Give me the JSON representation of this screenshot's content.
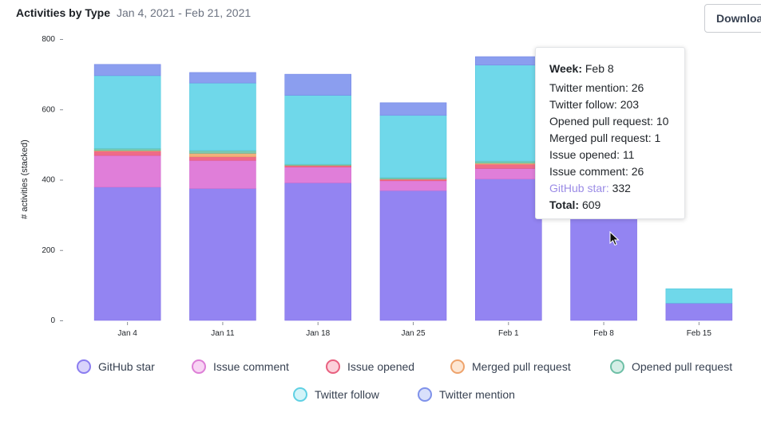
{
  "header": {
    "title": "Activities by Type",
    "date_range": "Jan 4, 2021 - Feb 21, 2021",
    "download_label": "Download"
  },
  "chart_data": {
    "type": "bar",
    "stacked": true,
    "ylabel": "# activities (stacked)",
    "xlabel": "",
    "ylim": [
      0,
      800
    ],
    "yticks": [
      0,
      200,
      400,
      600,
      800
    ],
    "categories": [
      "Jan 4",
      "Jan 11",
      "Jan 18",
      "Jan 25",
      "Feb 1",
      "Feb 8",
      "Feb 15"
    ],
    "series": [
      {
        "name": "GitHub star",
        "color": "#9384f2",
        "border": "#8271e6",
        "values": [
          379,
          375,
          391,
          369,
          402,
          332,
          49
        ]
      },
      {
        "name": "Issue comment",
        "color": "#e07ed9",
        "border": "#d46ecd",
        "values": [
          90,
          80,
          45,
          28,
          30,
          26,
          0
        ]
      },
      {
        "name": "Issue opened",
        "color": "#ef6b88",
        "border": "#e2577a",
        "values": [
          12,
          10,
          4,
          4,
          12,
          11,
          0
        ]
      },
      {
        "name": "Merged pull request",
        "color": "#f2b07a",
        "border": "#e89b60",
        "values": [
          2,
          10,
          1,
          1,
          3,
          1,
          0
        ]
      },
      {
        "name": "Opened pull request",
        "color": "#7cc8b0",
        "border": "#5fb89c",
        "values": [
          6,
          8,
          3,
          4,
          6,
          10,
          0
        ]
      },
      {
        "name": "Twitter follow",
        "color": "#6fd8ea",
        "border": "#52c9de",
        "values": [
          207,
          192,
          196,
          177,
          273,
          203,
          41
        ]
      },
      {
        "name": "Twitter mention",
        "color": "#8b9eef",
        "border": "#7488e6",
        "values": [
          32,
          30,
          60,
          36,
          24,
          26,
          0
        ]
      }
    ]
  },
  "tooltip": {
    "week_label": "Week:",
    "week_value": "Feb 8",
    "rows": [
      {
        "label": "Twitter mention",
        "value": "26"
      },
      {
        "label": "Twitter follow",
        "value": "203"
      },
      {
        "label": "Opened pull request",
        "value": "10"
      },
      {
        "label": "Merged pull request",
        "value": "1"
      },
      {
        "label": "Issue opened",
        "value": "11"
      },
      {
        "label": "Issue comment",
        "value": "26"
      },
      {
        "label": "GitHub star",
        "value": "332"
      }
    ],
    "total_label": "Total:",
    "total_value": "609"
  },
  "legend": [
    {
      "label": "GitHub star",
      "fill": "#d9d3fb",
      "border": "#8b7df0"
    },
    {
      "label": "Issue comment",
      "fill": "#f8d4f4",
      "border": "#dd7fd6"
    },
    {
      "label": "Issue opened",
      "fill": "#fcd0da",
      "border": "#e8607f"
    },
    {
      "label": "Merged pull request",
      "fill": "#fde6d3",
      "border": "#eea36c"
    },
    {
      "label": "Opened pull request",
      "fill": "#d5eee6",
      "border": "#6ebfa6"
    },
    {
      "label": "Twitter follow",
      "fill": "#d3f4f9",
      "border": "#5fd0e3"
    },
    {
      "label": "Twitter mention",
      "fill": "#d9e0fb",
      "border": "#7f92ea"
    }
  ]
}
